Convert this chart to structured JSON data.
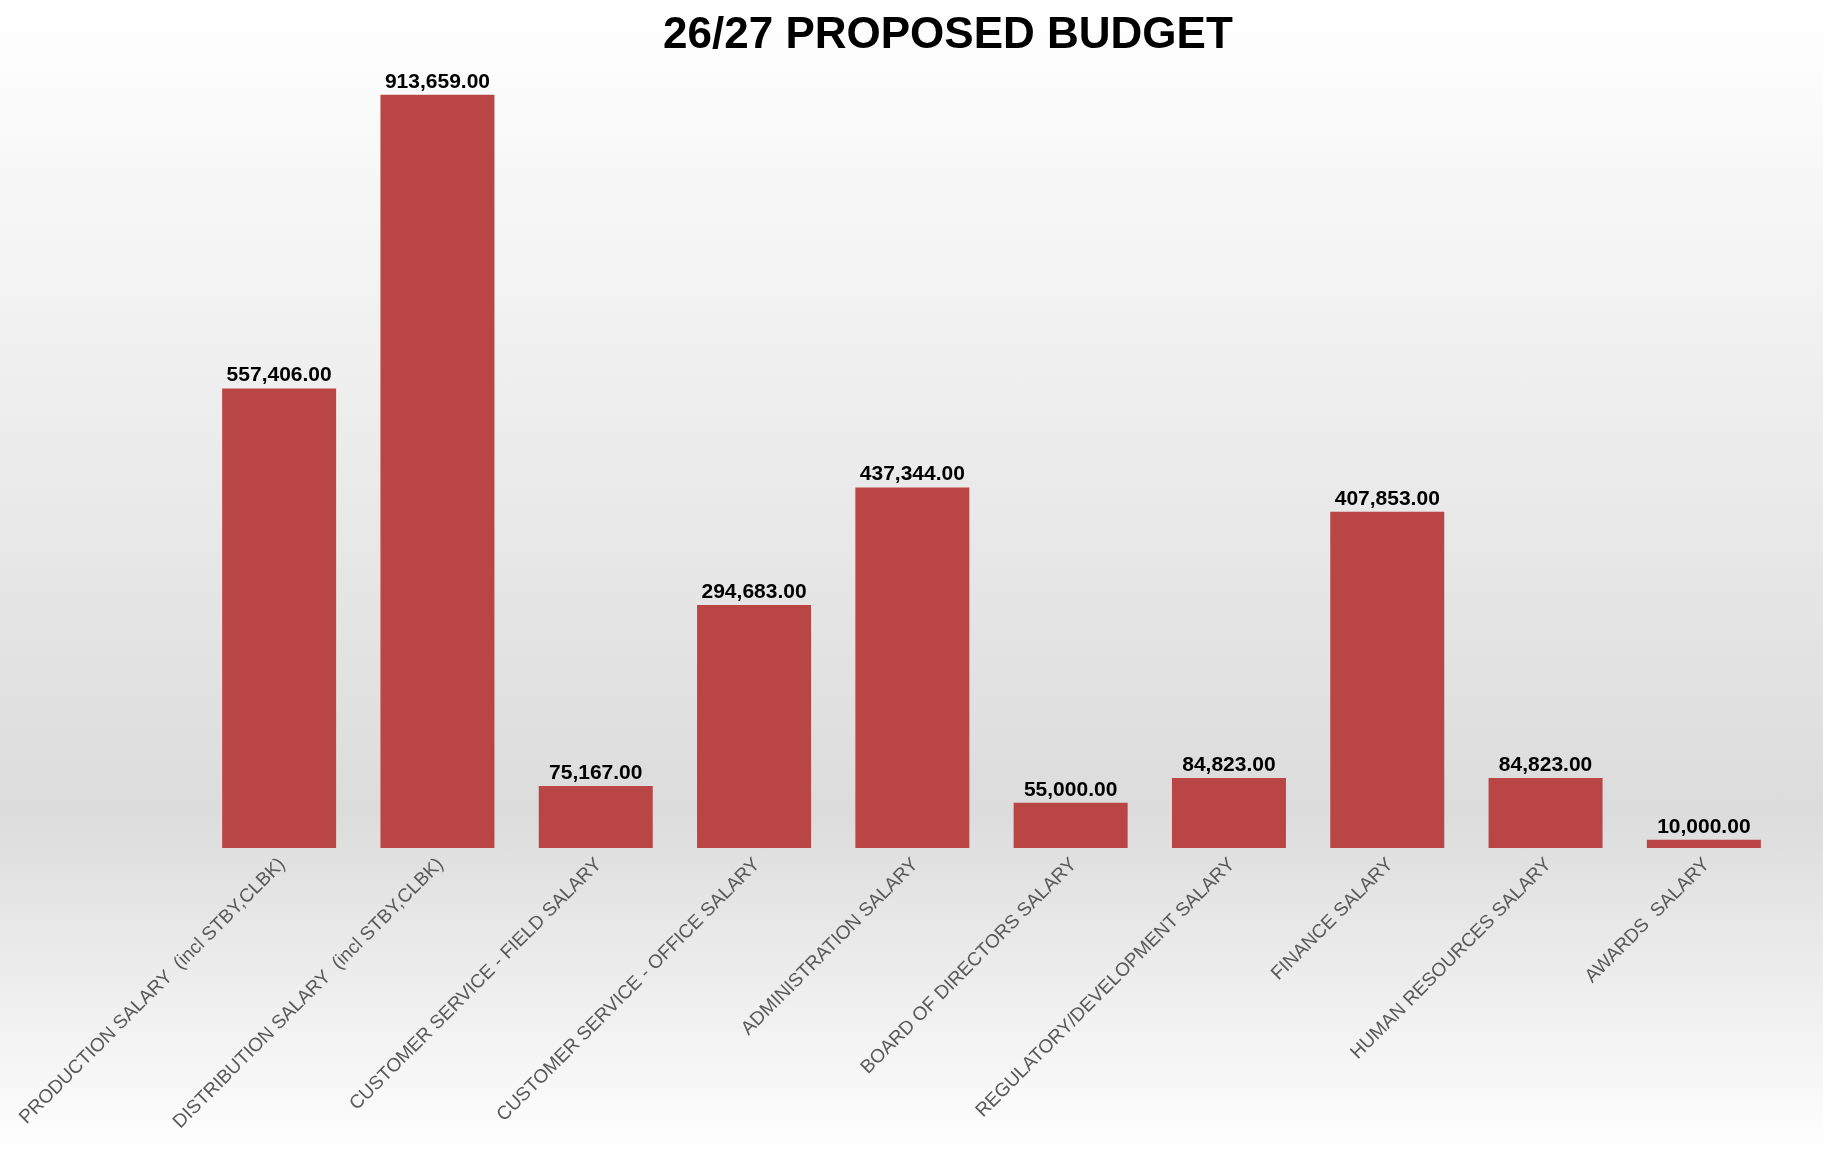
{
  "chart_data": {
    "type": "bar",
    "title": "26/27 PROPOSED BUDGET",
    "categories": [
      "PRODUCTION SALARY  (incl STBY,CLBK)",
      "DISTRIBUTION SALARY  (incl STBY,CLBK)",
      "CUSTOMER SERVICE - FIELD SALARY",
      "CUSTOMER SERVICE - OFFICE SALARY",
      "ADMINISTRATION SALARY",
      "BOARD OF DIRECTORS SALARY",
      "REGULATORY/DEVELOPMENT SALARY",
      "FINANCE SALARY",
      "HUMAN RESOURCES SALARY",
      "AWARDS  SALARY"
    ],
    "values": [
      557406,
      913659,
      75167,
      294683,
      437344,
      55000,
      84823,
      407853,
      84823,
      10000
    ],
    "value_labels": [
      "557,406.00",
      "913,659.00",
      "75,167.00",
      "294,683.00",
      "437,344.00",
      "55,000.00",
      "84,823.00",
      "407,853.00",
      "84,823.00",
      "10,000.00"
    ],
    "color": "#b94544",
    "tick_labels": "x"
  }
}
